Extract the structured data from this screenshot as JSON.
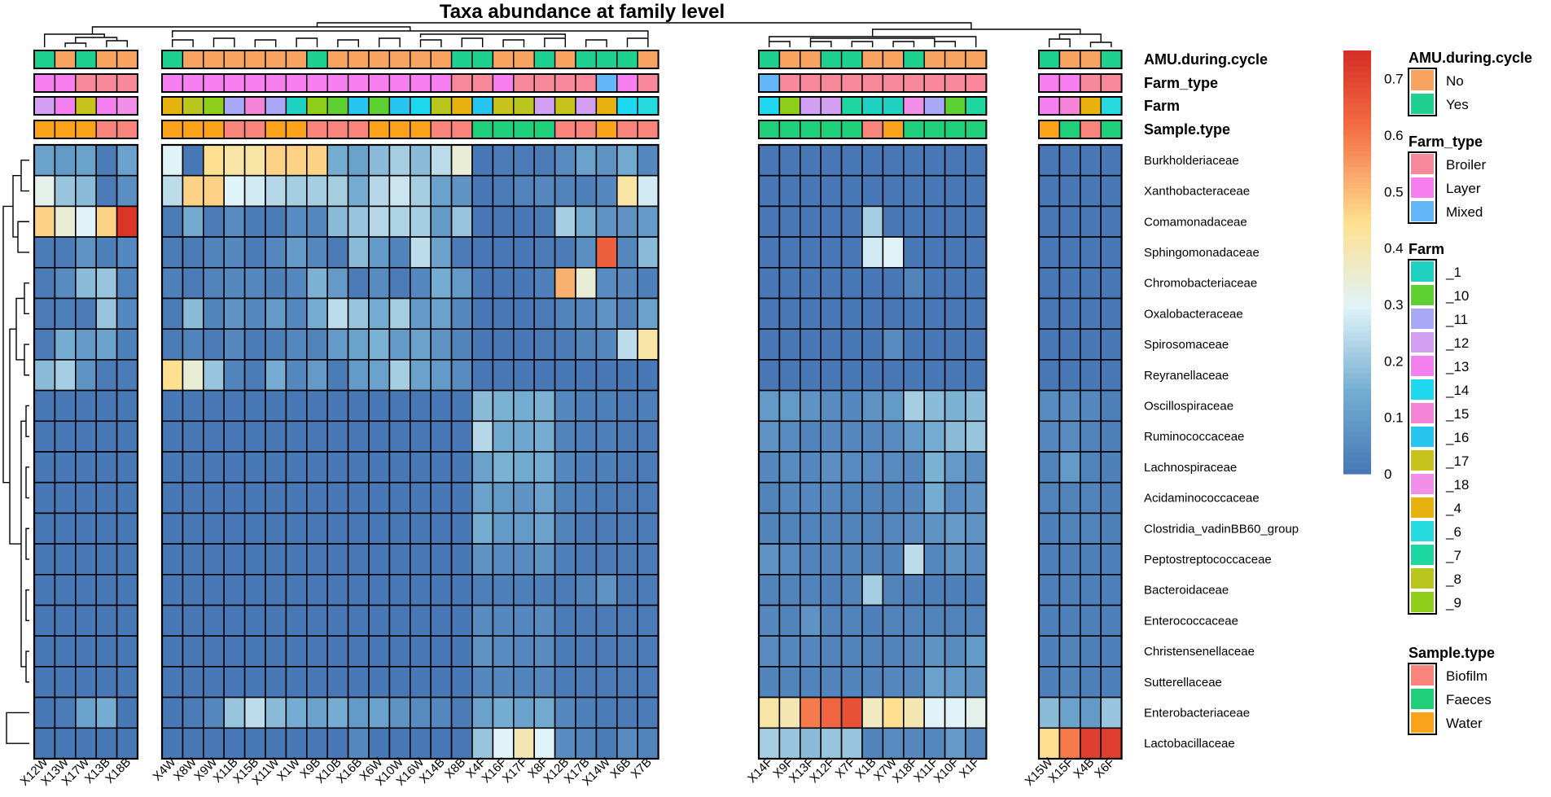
{
  "chart_data": {
    "type": "heatmap",
    "title": "Taxa abundance at family level",
    "colorbar": {
      "min": 0,
      "max": 0.75,
      "ticks": [
        "0",
        "0.1",
        "0.2",
        "0.3",
        "0.4",
        "0.5",
        "0.6",
        "0.7"
      ],
      "colors": [
        "#4575b4",
        "#abd9e9",
        "#e0f3f8",
        "#fee090",
        "#f46d43",
        "#d73027"
      ]
    },
    "rows": [
      "Burkholderiaceae",
      "Xanthobacteraceae",
      "Comamonadaceae",
      "Sphingomonadaceae",
      "Chromobacteriaceae",
      "Oxalobacteraceae",
      "Spirosomaceae",
      "Reyranellaceae",
      "Oscillospiraceae",
      "Ruminococcaceae",
      "Lachnospiraceae",
      "Acidaminococcaceae",
      "Clostridia_vadinBB60_group",
      "Peptostreptococcaceae",
      "Bacteroidaceae",
      "Enterococcaceae",
      "Christensenellaceae",
      "Sutterellaceae",
      "Enterobacteriaceae",
      "Lactobacillaceae"
    ],
    "column_groups": [
      [
        "X12W",
        "X13W",
        "X17W",
        "X13B",
        "X18B"
      ],
      [
        "X4W",
        "X8W",
        "X9W",
        "X11B",
        "X15B",
        "X11W",
        "X1W",
        "X9B",
        "X10B",
        "X16B",
        "X6W",
        "X10W",
        "X16W",
        "X14B",
        "X8B",
        "X4F",
        "X16F",
        "X17F",
        "X8F",
        "X12B",
        "X17B",
        "X14W",
        "X6B",
        "X7B"
      ],
      [
        "X14F",
        "X9F",
        "X13F",
        "X12F",
        "X7F",
        "X1B",
        "X7W",
        "X18F",
        "X11F",
        "X10F",
        "X1F"
      ],
      [
        "X15W",
        "X15F",
        "X4B",
        "X6F"
      ]
    ],
    "values": [
      [
        0.12,
        0.1,
        0.12,
        0.02,
        0.12,
        0.3,
        0.01,
        0.45,
        0.42,
        0.42,
        0.47,
        0.47,
        0.47,
        0.15,
        0.12,
        0.18,
        0.22,
        0.18,
        0.25,
        0.35,
        0.01,
        0.02,
        0.02,
        0.02,
        0.06,
        0.12,
        0.08,
        0.14,
        0.05,
        0.01,
        0.01,
        0.01,
        0.01,
        0.01,
        0.01,
        0.01,
        0.01,
        0.01,
        0.01,
        0.01,
        0.01,
        0.01,
        0.01,
        0.01
      ],
      [
        0.32,
        0.2,
        0.18,
        0.02,
        0.07,
        0.25,
        0.47,
        0.47,
        0.3,
        0.28,
        0.24,
        0.22,
        0.22,
        0.22,
        0.15,
        0.24,
        0.27,
        0.22,
        0.12,
        0.08,
        0.01,
        0.02,
        0.04,
        0.05,
        0.04,
        0.03,
        0.05,
        0.42,
        0.28,
        0.01,
        0.01,
        0.01,
        0.01,
        0.01,
        0.01,
        0.01,
        0.01,
        0.01,
        0.01,
        0.01,
        0.01,
        0.01,
        0.01,
        0.01
      ],
      [
        0.47,
        0.35,
        0.3,
        0.47,
        0.74,
        0.02,
        0.14,
        0.02,
        0.06,
        0.02,
        0.02,
        0.06,
        0.05,
        0.18,
        0.2,
        0.24,
        0.23,
        0.22,
        0.1,
        0.2,
        0.01,
        0.01,
        0.01,
        0.02,
        0.22,
        0.15,
        0.08,
        0.08,
        0.1,
        0.01,
        0.01,
        0.01,
        0.01,
        0.01,
        0.22,
        0.01,
        0.01,
        0.01,
        0.01,
        0.01,
        0.01,
        0.01,
        0.01,
        0.01
      ],
      [
        0.02,
        0.02,
        0.08,
        0.03,
        0.05,
        0.02,
        0.02,
        0.04,
        0.05,
        0.02,
        0.05,
        0.1,
        0.05,
        0.02,
        0.18,
        0.1,
        0.04,
        0.25,
        0.12,
        0.02,
        0.01,
        0.01,
        0.01,
        0.02,
        0.02,
        0.07,
        0.65,
        0.05,
        0.18,
        0.01,
        0.01,
        0.01,
        0.01,
        0.01,
        0.28,
        0.3,
        0.01,
        0.01,
        0.01,
        0.01,
        0.01,
        0.01,
        0.01,
        0.01
      ],
      [
        0.02,
        0.06,
        0.18,
        0.2,
        0.04,
        0.03,
        0.02,
        0.04,
        0.05,
        0.05,
        0.03,
        0.05,
        0.16,
        0.1,
        0.02,
        0.06,
        0.02,
        0.05,
        0.15,
        0.1,
        0.01,
        0.01,
        0.01,
        0.03,
        0.52,
        0.35,
        0.06,
        0.05,
        0.03,
        0.01,
        0.01,
        0.01,
        0.01,
        0.01,
        0.01,
        0.01,
        0.04,
        0.01,
        0.01,
        0.01,
        0.01,
        0.01,
        0.01,
        0.01
      ],
      [
        0.02,
        0.03,
        0.02,
        0.2,
        0.05,
        0.02,
        0.18,
        0.04,
        0.08,
        0.05,
        0.1,
        0.05,
        0.15,
        0.25,
        0.2,
        0.15,
        0.22,
        0.1,
        0.12,
        0.05,
        0.01,
        0.01,
        0.01,
        0.02,
        0.04,
        0.05,
        0.08,
        0.04,
        0.12,
        0.01,
        0.01,
        0.01,
        0.01,
        0.01,
        0.01,
        0.01,
        0.01,
        0.01,
        0.01,
        0.01,
        0.01,
        0.01,
        0.01,
        0.01
      ],
      [
        0.02,
        0.15,
        0.1,
        0.12,
        0.03,
        0.02,
        0.04,
        0.02,
        0.05,
        0.02,
        0.03,
        0.05,
        0.04,
        0.1,
        0.12,
        0.16,
        0.1,
        0.12,
        0.08,
        0.04,
        0.01,
        0.01,
        0.01,
        0.02,
        0.02,
        0.04,
        0.05,
        0.25,
        0.42,
        0.01,
        0.01,
        0.01,
        0.01,
        0.01,
        0.01,
        0.06,
        0.01,
        0.01,
        0.01,
        0.01,
        0.01,
        0.01,
        0.01,
        0.01
      ],
      [
        0.18,
        0.22,
        0.08,
        0.02,
        0.02,
        0.45,
        0.35,
        0.2,
        0.04,
        0.02,
        0.15,
        0.05,
        0.1,
        0.02,
        0.1,
        0.12,
        0.22,
        0.12,
        0.1,
        0.06,
        0.01,
        0.01,
        0.01,
        0.01,
        0.01,
        0.01,
        0.01,
        0.01,
        0.01,
        0.01,
        0.01,
        0.01,
        0.01,
        0.01,
        0.01,
        0.01,
        0.01,
        0.01,
        0.01,
        0.01,
        0.01,
        0.01,
        0.01,
        0.01
      ],
      [
        0.01,
        0.01,
        0.01,
        0.01,
        0.01,
        0.01,
        0.01,
        0.01,
        0.01,
        0.01,
        0.01,
        0.01,
        0.01,
        0.01,
        0.01,
        0.01,
        0.01,
        0.01,
        0.01,
        0.01,
        0.18,
        0.16,
        0.15,
        0.16,
        0.05,
        0.03,
        0.03,
        0.02,
        0.03,
        0.1,
        0.1,
        0.08,
        0.06,
        0.05,
        0.08,
        0.1,
        0.22,
        0.18,
        0.16,
        0.18,
        0.06,
        0.06,
        0.05,
        0.03
      ],
      [
        0.01,
        0.01,
        0.01,
        0.01,
        0.01,
        0.01,
        0.01,
        0.01,
        0.01,
        0.01,
        0.01,
        0.01,
        0.01,
        0.01,
        0.01,
        0.01,
        0.01,
        0.01,
        0.01,
        0.01,
        0.24,
        0.14,
        0.13,
        0.15,
        0.04,
        0.03,
        0.03,
        0.02,
        0.02,
        0.08,
        0.06,
        0.04,
        0.05,
        0.05,
        0.05,
        0.06,
        0.1,
        0.15,
        0.18,
        0.2,
        0.05,
        0.06,
        0.04,
        0.03
      ],
      [
        0.01,
        0.01,
        0.01,
        0.01,
        0.01,
        0.01,
        0.01,
        0.01,
        0.01,
        0.01,
        0.01,
        0.01,
        0.01,
        0.01,
        0.01,
        0.01,
        0.01,
        0.01,
        0.01,
        0.01,
        0.12,
        0.16,
        0.14,
        0.15,
        0.05,
        0.03,
        0.03,
        0.02,
        0.02,
        0.05,
        0.06,
        0.05,
        0.07,
        0.06,
        0.06,
        0.06,
        0.05,
        0.16,
        0.1,
        0.07,
        0.04,
        0.1,
        0.04,
        0.03
      ],
      [
        0.01,
        0.01,
        0.01,
        0.01,
        0.01,
        0.01,
        0.01,
        0.01,
        0.01,
        0.01,
        0.01,
        0.01,
        0.01,
        0.01,
        0.01,
        0.01,
        0.01,
        0.01,
        0.01,
        0.01,
        0.12,
        0.1,
        0.08,
        0.12,
        0.04,
        0.03,
        0.02,
        0.02,
        0.02,
        0.04,
        0.05,
        0.05,
        0.05,
        0.04,
        0.04,
        0.04,
        0.05,
        0.15,
        0.06,
        0.08,
        0.04,
        0.04,
        0.04,
        0.03
      ],
      [
        0.01,
        0.01,
        0.01,
        0.01,
        0.01,
        0.01,
        0.01,
        0.01,
        0.01,
        0.01,
        0.01,
        0.01,
        0.01,
        0.01,
        0.01,
        0.01,
        0.01,
        0.01,
        0.01,
        0.01,
        0.15,
        0.1,
        0.1,
        0.12,
        0.04,
        0.02,
        0.02,
        0.02,
        0.02,
        0.04,
        0.04,
        0.04,
        0.04,
        0.04,
        0.04,
        0.05,
        0.06,
        0.08,
        0.1,
        0.08,
        0.03,
        0.04,
        0.04,
        0.03
      ],
      [
        0.01,
        0.01,
        0.01,
        0.01,
        0.01,
        0.01,
        0.01,
        0.01,
        0.01,
        0.01,
        0.01,
        0.01,
        0.01,
        0.01,
        0.01,
        0.01,
        0.01,
        0.01,
        0.01,
        0.01,
        0.08,
        0.06,
        0.06,
        0.08,
        0.03,
        0.02,
        0.02,
        0.02,
        0.02,
        0.08,
        0.06,
        0.04,
        0.04,
        0.04,
        0.04,
        0.04,
        0.25,
        0.05,
        0.08,
        0.06,
        0.03,
        0.03,
        0.03,
        0.03
      ],
      [
        0.01,
        0.01,
        0.01,
        0.01,
        0.01,
        0.01,
        0.01,
        0.01,
        0.01,
        0.01,
        0.01,
        0.01,
        0.01,
        0.01,
        0.01,
        0.01,
        0.01,
        0.01,
        0.01,
        0.01,
        0.03,
        0.03,
        0.03,
        0.03,
        0.02,
        0.04,
        0.08,
        0.02,
        0.02,
        0.04,
        0.04,
        0.04,
        0.03,
        0.04,
        0.22,
        0.04,
        0.03,
        0.03,
        0.03,
        0.03,
        0.03,
        0.03,
        0.03,
        0.03
      ],
      [
        0.01,
        0.01,
        0.01,
        0.01,
        0.01,
        0.01,
        0.01,
        0.01,
        0.01,
        0.01,
        0.01,
        0.01,
        0.01,
        0.01,
        0.01,
        0.01,
        0.01,
        0.01,
        0.01,
        0.01,
        0.06,
        0.05,
        0.05,
        0.06,
        0.02,
        0.02,
        0.02,
        0.02,
        0.02,
        0.05,
        0.04,
        0.08,
        0.04,
        0.04,
        0.03,
        0.04,
        0.04,
        0.04,
        0.04,
        0.04,
        0.03,
        0.03,
        0.03,
        0.03
      ],
      [
        0.01,
        0.01,
        0.01,
        0.01,
        0.01,
        0.01,
        0.01,
        0.01,
        0.01,
        0.01,
        0.01,
        0.01,
        0.01,
        0.01,
        0.01,
        0.01,
        0.01,
        0.01,
        0.01,
        0.01,
        0.08,
        0.06,
        0.05,
        0.06,
        0.02,
        0.02,
        0.02,
        0.02,
        0.02,
        0.06,
        0.05,
        0.05,
        0.04,
        0.04,
        0.04,
        0.04,
        0.05,
        0.08,
        0.06,
        0.1,
        0.03,
        0.04,
        0.03,
        0.03
      ],
      [
        0.01,
        0.01,
        0.01,
        0.01,
        0.01,
        0.01,
        0.01,
        0.01,
        0.01,
        0.01,
        0.01,
        0.01,
        0.01,
        0.01,
        0.01,
        0.01,
        0.01,
        0.01,
        0.01,
        0.01,
        0.05,
        0.05,
        0.04,
        0.05,
        0.02,
        0.02,
        0.02,
        0.02,
        0.02,
        0.04,
        0.04,
        0.04,
        0.04,
        0.04,
        0.04,
        0.05,
        0.05,
        0.12,
        0.1,
        0.08,
        0.03,
        0.04,
        0.03,
        0.03
      ],
      [
        0.01,
        0.02,
        0.12,
        0.15,
        0.01,
        0.01,
        0.02,
        0.05,
        0.2,
        0.25,
        0.18,
        0.15,
        0.12,
        0.15,
        0.1,
        0.12,
        0.08,
        0.06,
        0.05,
        0.02,
        0.12,
        0.15,
        0.12,
        0.14,
        0.05,
        0.03,
        0.02,
        0.02,
        0.02,
        0.42,
        0.4,
        0.6,
        0.64,
        0.68,
        0.38,
        0.45,
        0.4,
        0.3,
        0.3,
        0.32,
        0.18,
        0.12,
        0.1,
        0.2
      ],
      [
        0.01,
        0.01,
        0.01,
        0.01,
        0.01,
        0.01,
        0.01,
        0.01,
        0.01,
        0.01,
        0.01,
        0.01,
        0.01,
        0.01,
        0.05,
        0.01,
        0.01,
        0.01,
        0.01,
        0.01,
        0.2,
        0.3,
        0.4,
        0.3,
        0.06,
        0.04,
        0.02,
        0.06,
        0.04,
        0.22,
        0.2,
        0.18,
        0.2,
        0.2,
        0.04,
        0.06,
        0.05,
        0.05,
        0.1,
        0.05,
        0.45,
        0.6,
        0.72,
        0.72
      ]
    ],
    "annotation_tracks": [
      "AMU.during.cycle",
      "Farm_type",
      "Farm",
      "Sample.type"
    ],
    "annotations": {
      "AMU.during.cycle": [
        "Yes",
        "No",
        "Yes",
        "No",
        "No",
        "Yes",
        "No",
        "No",
        "No",
        "No",
        "No",
        "No",
        "Yes",
        "No",
        "No",
        "No",
        "No",
        "No",
        "No",
        "Yes",
        "Yes",
        "No",
        "No",
        "Yes",
        "No",
        "Yes",
        "Yes",
        "Yes",
        "No",
        "Yes",
        "No",
        "No",
        "Yes",
        "Yes",
        "No",
        "No",
        "Yes",
        "No",
        "No",
        "No",
        "Yes",
        "No",
        "No",
        "Yes"
      ],
      "Farm_type": [
        "Layer",
        "Layer",
        "Broiler",
        "Broiler",
        "Broiler",
        "Layer",
        "Layer",
        "Layer",
        "Layer",
        "Layer",
        "Layer",
        "Layer",
        "Layer",
        "Layer",
        "Layer",
        "Layer",
        "Layer",
        "Layer",
        "Layer",
        "Broiler",
        "Broiler",
        "Layer",
        "Broiler",
        "Broiler",
        "Broiler",
        "Broiler",
        "Mixed",
        "Layer",
        "Broiler",
        "Mixed",
        "Broiler",
        "Broiler",
        "Broiler",
        "Broiler",
        "Broiler",
        "Broiler",
        "Broiler",
        "Broiler",
        "Broiler",
        "Broiler",
        "Layer",
        "Layer",
        "Broiler",
        "Broiler"
      ],
      "Farm": [
        "_12",
        "_13",
        "_17",
        "_13",
        "_18",
        "_4",
        "_8",
        "_9",
        "_11",
        "_15",
        "_11",
        "_1",
        "_9",
        "_10",
        "_16",
        "_10",
        "_16",
        "_14",
        "_8",
        "_4",
        "_16",
        "_17",
        "_8",
        "_12",
        "_17",
        "_12",
        "_4",
        "_14",
        "_6",
        "_14",
        "_9",
        "_12",
        "_12",
        "_7",
        "_1",
        "_1",
        "_18",
        "_11",
        "_10",
        "_7",
        "_13",
        "_15",
        "_4",
        "_6"
      ],
      "Sample.type": [
        "Water",
        "Water",
        "Water",
        "Biofilm",
        "Biofilm",
        "Water",
        "Water",
        "Water",
        "Biofilm",
        "Biofilm",
        "Water",
        "Water",
        "Biofilm",
        "Biofilm",
        "Biofilm",
        "Water",
        "Water",
        "Water",
        "Biofilm",
        "Biofilm",
        "Faeces",
        "Faeces",
        "Faeces",
        "Faeces",
        "Biofilm",
        "Biofilm",
        "Water",
        "Biofilm",
        "Biofilm",
        "Faeces",
        "Faeces",
        "Faeces",
        "Faeces",
        "Faeces",
        "Biofilm",
        "Water",
        "Faeces",
        "Faeces",
        "Faeces",
        "Faeces",
        "Water",
        "Faeces",
        "Biofilm",
        "Faeces"
      ]
    },
    "legend_titles": {
      "colorbar": "",
      "AMU.during.cycle": "AMU.during.cycle",
      "Farm_type": "Farm_type",
      "Farm": "Farm",
      "Sample.type": "Sample.type"
    },
    "legend_levels": {
      "AMU.during.cycle": [
        "No",
        "Yes"
      ],
      "Farm_type": [
        "Broiler",
        "Layer",
        "Mixed"
      ],
      "Farm": [
        "_1",
        "_10",
        "_11",
        "_12",
        "_13",
        "_14",
        "_15",
        "_16",
        "_17",
        "_18",
        "_4",
        "_6",
        "_7",
        "_8",
        "_9"
      ],
      "Sample.type": [
        "Biofilm",
        "Faeces",
        "Water"
      ]
    },
    "level_colors": {
      "AMU.during.cycle": {
        "No": "#f8a460",
        "Yes": "#1ed190"
      },
      "Farm_type": {
        "Broiler": "#f7899a",
        "Layer": "#f77ff0",
        "Mixed": "#63b6f7"
      },
      "Farm": {
        "_1": "#1fd1c1",
        "_10": "#5ed132",
        "_11": "#a9a8f7",
        "_12": "#d39ff2",
        "_13": "#f47fef",
        "_14": "#1ed8f0",
        "_15": "#f484d8",
        "_16": "#27c6f0",
        "_17": "#c8c21d",
        "_18": "#f28fe8",
        "_4": "#e7b20d",
        "_6": "#25dbe0",
        "_7": "#1ed7a0",
        "_8": "#b8c61e",
        "_9": "#8fcf1a"
      },
      "Sample.type": {
        "Biofilm": "#f8847b",
        "Faeces": "#1fcf79",
        "Water": "#f9a21a"
      }
    }
  }
}
